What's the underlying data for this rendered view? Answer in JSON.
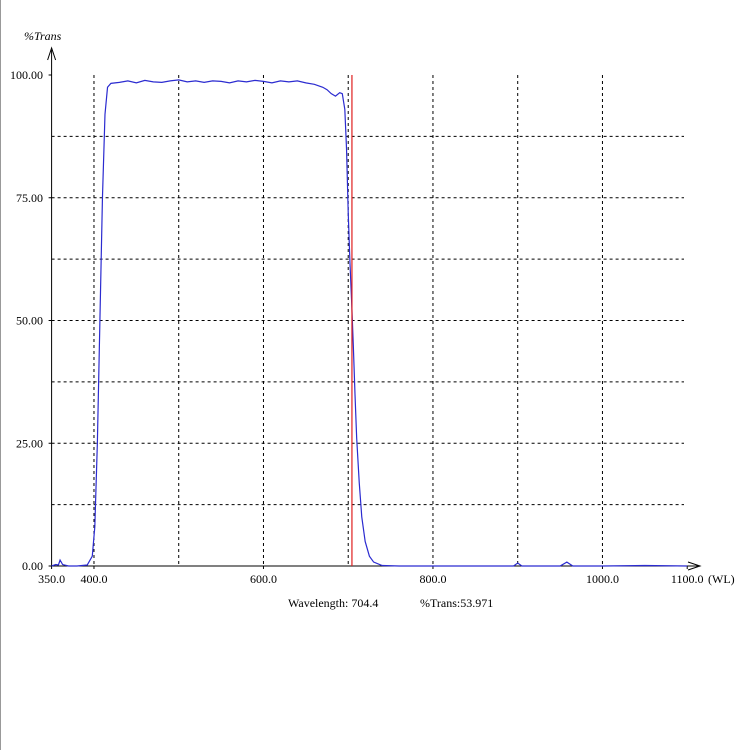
{
  "chart_data": {
    "type": "line",
    "y_label": "%Trans",
    "x_label": "(WL)",
    "xlim": [
      350,
      1100
    ],
    "ylim": [
      0,
      100
    ],
    "xticks": [
      {
        "value": 350,
        "label": "350.0"
      },
      {
        "value": 400,
        "label": "400.0"
      },
      {
        "value": 600,
        "label": "600.0"
      },
      {
        "value": 800,
        "label": "800.0"
      },
      {
        "value": 1000,
        "label": "1000.0"
      },
      {
        "value": 1100,
        "label": "1100.0"
      }
    ],
    "yticks": [
      {
        "value": 0,
        "label": "0.00"
      },
      {
        "value": 25,
        "label": "25.00"
      },
      {
        "value": 50,
        "label": "50.00"
      },
      {
        "value": 75,
        "label": "75.00"
      },
      {
        "value": 100,
        "label": "100.00"
      }
    ],
    "xgrid": [
      400,
      500,
      600,
      700,
      800,
      900,
      1000
    ],
    "ygrid": [
      12.5,
      25,
      37.5,
      50,
      62.5,
      75,
      87.5
    ],
    "grid": true,
    "series": [
      {
        "color": "#2b2bd0",
        "x": [
          350,
          355,
          358,
          360,
          363,
          370,
          380,
          392,
          398,
          401,
          404,
          407,
          410,
          413,
          416,
          420,
          430,
          440,
          450,
          460,
          470,
          480,
          490,
          500,
          510,
          520,
          530,
          540,
          550,
          560,
          570,
          580,
          590,
          600,
          610,
          620,
          630,
          640,
          650,
          660,
          670,
          675,
          680,
          685,
          690,
          693,
          696,
          698,
          700,
          702,
          704,
          706,
          708,
          710,
          713,
          716,
          720,
          725,
          730,
          740,
          760,
          800,
          850,
          895,
          900,
          905,
          950,
          958,
          965,
          1000,
          1050,
          1100
        ],
        "values": [
          0,
          0.3,
          0.2,
          1.2,
          0.3,
          0,
          0,
          0.2,
          2,
          8,
          25,
          50,
          75,
          92,
          97.5,
          98.3,
          98.5,
          98.8,
          98.4,
          98.9,
          98.6,
          98.5,
          98.8,
          99,
          98.6,
          98.8,
          98.5,
          98.8,
          98.7,
          98.4,
          98.8,
          98.6,
          98.9,
          98.7,
          98.4,
          98.8,
          98.6,
          98.8,
          98.4,
          98.1,
          97.5,
          97,
          96.2,
          95.7,
          96.4,
          96.2,
          93,
          85,
          72,
          62,
          54,
          45,
          35,
          26,
          17,
          10,
          5,
          2,
          0.8,
          0.1,
          0,
          0,
          0,
          0,
          0.6,
          0,
          0,
          0.8,
          0,
          0,
          0.1,
          0
        ]
      }
    ],
    "cursor": {
      "color": "#e02020",
      "wavelength": {
        "value": 704.4,
        "label": "Wavelength: 704.4"
      },
      "trans": {
        "value": 53.971,
        "label": "%Trans:53.971"
      }
    }
  }
}
